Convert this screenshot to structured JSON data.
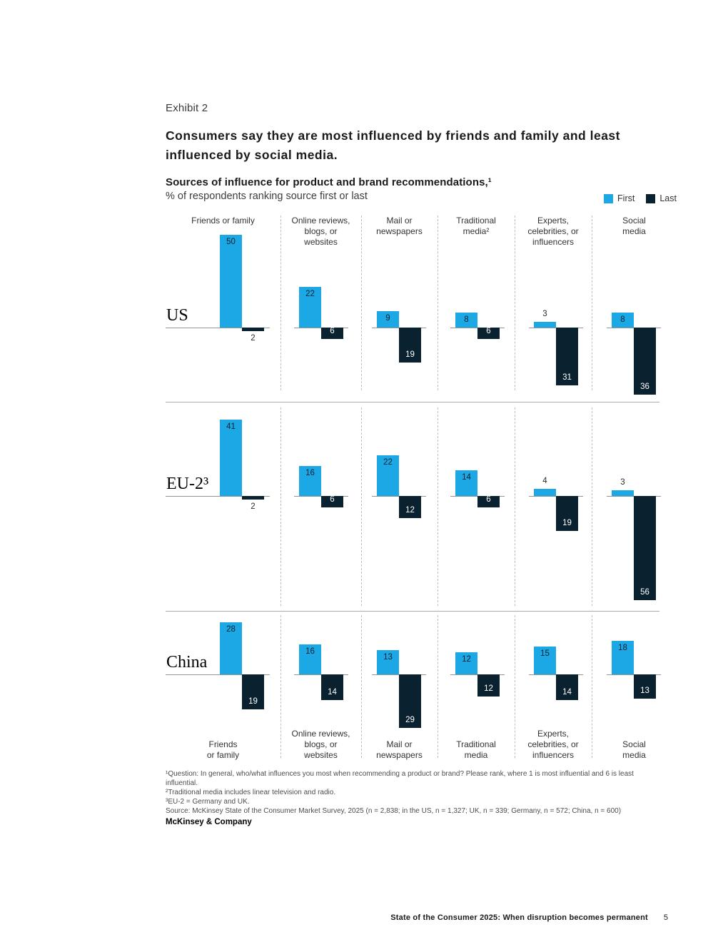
{
  "exhibit_label": "Exhibit 2",
  "title": "Consumers say they are most influenced by friends and family and least influenced by social media.",
  "subtitle_bold": "Sources of influence for product and brand recommendations,¹",
  "subtitle_unit": "% of respondents ranking source first or last",
  "chart_data": {
    "type": "bar",
    "title": "Sources of influence for product and brand recommendations",
    "ylabel": "% of respondents ranking source first or last",
    "legend_position": "top-right",
    "legend": [
      {
        "name": "First",
        "color": "#1CA7E5"
      },
      {
        "name": "Last",
        "color": "#0A2130"
      }
    ],
    "categories": [
      "Friends or family",
      "Online reviews, blogs, or websites",
      "Mail or newspapers",
      "Traditional media²",
      "Experts, celebrities, or influencers",
      "Social media"
    ],
    "column_headers": [
      [
        "Friends or family"
      ],
      [
        "Online reviews,",
        "blogs, or",
        "websites"
      ],
      [
        "Mail or",
        "newspapers"
      ],
      [
        "Traditional",
        "media²"
      ],
      [
        "Experts,",
        "celebrities, or",
        "influencers"
      ],
      [
        "Social",
        "media"
      ]
    ],
    "bottom_labels": [
      [
        "Friends",
        "or family"
      ],
      [
        "Online reviews,",
        "blogs, or",
        "websites"
      ],
      [
        "Mail or",
        "newspapers"
      ],
      [
        "Traditional",
        "media"
      ],
      [
        "Experts,",
        "celebrities, or",
        "influencers"
      ],
      [
        "Social",
        "media"
      ]
    ],
    "rows": [
      {
        "region": "US",
        "series": [
          {
            "name": "First",
            "values": [
              50,
              22,
              9,
              8,
              3,
              8
            ]
          },
          {
            "name": "Last",
            "values": [
              2,
              6,
              19,
              6,
              31,
              36
            ]
          }
        ]
      },
      {
        "region": "EU-2³",
        "series": [
          {
            "name": "First",
            "values": [
              41,
              16,
              22,
              14,
              4,
              3
            ]
          },
          {
            "name": "Last",
            "values": [
              2,
              6,
              12,
              6,
              19,
              56
            ]
          }
        ]
      },
      {
        "region": "China",
        "series": [
          {
            "name": "First",
            "values": [
              28,
              16,
              13,
              12,
              15,
              18
            ]
          },
          {
            "name": "Last",
            "values": [
              19,
              14,
              29,
              12,
              14,
              13
            ]
          }
        ]
      }
    ]
  },
  "footnotes": [
    "¹Question: In general, who/what influences you most when recommending a product or brand? Please rank, where 1 is most influential and 6 is least influential.",
    "²Traditional media includes linear television and radio.",
    "³EU-2 = Germany and UK.",
    "Source: McKinsey State of the Consumer Market Survey, 2025 (n = 2,838; in the US, n = 1,327; UK, n = 339; Germany, n = 572; China, n = 600)"
  ],
  "brand": "McKinsey & Company",
  "footer": {
    "title": "State of the Consumer 2025: When disruption becomes permanent",
    "page_number": "5"
  }
}
